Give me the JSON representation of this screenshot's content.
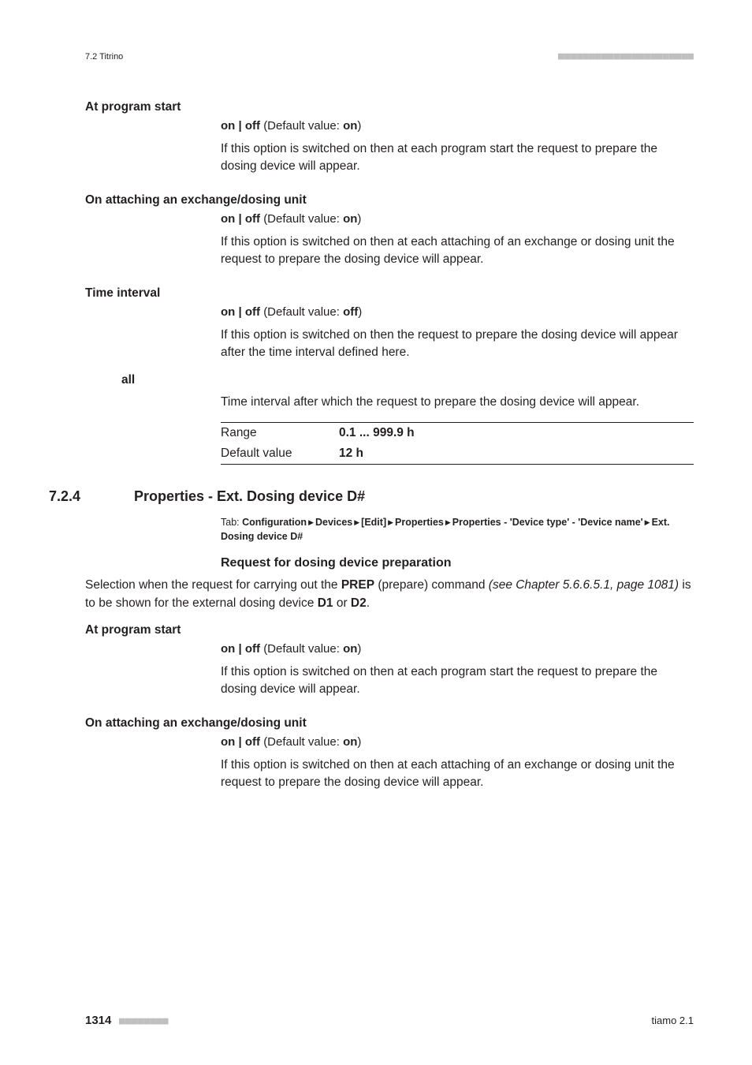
{
  "running_head": {
    "left": "7.2 Titrino",
    "right_dots": "■■■■■■■■■■■■■■■■■■■■■■"
  },
  "param1": {
    "label": "At program start",
    "options_prefix": "on | off",
    "default_label": "(Default value:",
    "default_value": "on",
    "default_close": ")",
    "desc": "If this option is switched on then at each program start the request to prepare the dosing device will appear."
  },
  "param2": {
    "label": "On attaching an exchange/dosing unit",
    "options_prefix": "on | off",
    "default_label": "(Default value:",
    "default_value": "on",
    "default_close": ")",
    "desc": "If this option is switched on then at each attaching of an exchange or dosing unit the request to prepare the dosing device will appear."
  },
  "param3": {
    "label": "Time interval",
    "options_prefix": "on | off",
    "default_label": "(Default value:",
    "default_value": "off",
    "default_close": ")",
    "desc": "If this option is switched on then the request to prepare the dosing device will appear after the time interval defined here."
  },
  "sub_all": {
    "label": "all",
    "desc": "Time interval after which the request to prepare the dosing device will appear.",
    "range_label": "Range",
    "range_value": "0.1 ... 999.9 h",
    "default_label": "Default value",
    "default_value": "12 h"
  },
  "section": {
    "num": "7.2.4",
    "title": "Properties - Ext. Dosing device D#",
    "tab_label": "Tab:",
    "path_segments": [
      "Configuration",
      "Devices",
      "[Edit]",
      "Properties",
      "Properties - 'Device type' - 'Device name'",
      "Ext. Dosing device D#"
    ],
    "subhead": "Request for dosing device preparation",
    "intro_pre": "Selection when the request for carrying out the ",
    "intro_prep": "PREP",
    "intro_post_prep": " (prepare) command ",
    "see_chapter": "(see Chapter 5.6.6.5.1, page 1081)",
    "intro_tail_pre": " is to be shown for the external dosing device ",
    "d1": "D1",
    "or": " or ",
    "d2": "D2",
    "period": "."
  },
  "param4": {
    "label": "At program start",
    "options_prefix": "on | off",
    "default_label": "(Default value:",
    "default_value": "on",
    "default_close": ")",
    "desc": "If this option is switched on then at each program start the request to prepare the dosing device will appear."
  },
  "param5": {
    "label": "On attaching an exchange/dosing unit",
    "options_prefix": "on | off",
    "default_label": "(Default value:",
    "default_value": "on",
    "default_close": ")",
    "desc": "If this option is switched on then at each attaching of an exchange or dosing unit the request to prepare the dosing device will appear."
  },
  "footer": {
    "page_num": "1314",
    "dots": "■■■■■■■■",
    "right": "tiamo 2.1"
  }
}
